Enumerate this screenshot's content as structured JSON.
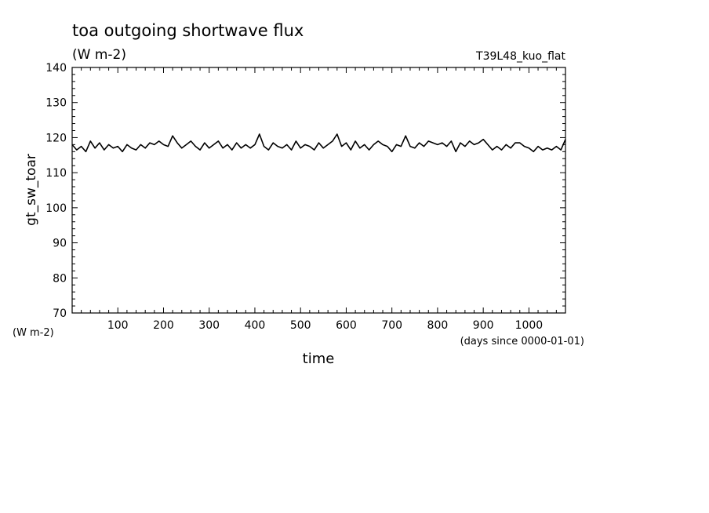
{
  "chart_data": {
    "type": "line",
    "title": "toa outgoing shortwave flux",
    "subtitle": "(W m-2)",
    "run_label": "T39L48_kuo_flat",
    "xlabel": "time",
    "x_units": "(days since 0000-01-01)",
    "ylabel": "gt_sw_toar",
    "y_units": "(W m-2)",
    "xlim": [
      0,
      1080
    ],
    "ylim": [
      70,
      140
    ],
    "x_ticks": [
      100,
      200,
      300,
      400,
      500,
      600,
      700,
      800,
      900,
      1000
    ],
    "y_ticks": [
      70,
      80,
      90,
      100,
      110,
      120,
      130,
      140
    ],
    "grid": false,
    "series": [
      {
        "x": [
          0,
          10,
          20,
          30,
          40,
          50,
          60,
          70,
          80,
          90,
          100,
          110,
          120,
          130,
          140,
          150,
          160,
          170,
          180,
          190,
          200,
          210,
          220,
          230,
          240,
          250,
          260,
          270,
          280,
          290,
          300,
          310,
          320,
          330,
          340,
          350,
          360,
          370,
          380,
          390,
          400,
          410,
          420,
          430,
          440,
          450,
          460,
          470,
          480,
          490,
          500,
          510,
          520,
          530,
          540,
          550,
          560,
          570,
          580,
          590,
          600,
          610,
          620,
          630,
          640,
          650,
          660,
          670,
          680,
          690,
          700,
          710,
          720,
          730,
          740,
          750,
          760,
          770,
          780,
          790,
          800,
          810,
          820,
          830,
          840,
          850,
          860,
          870,
          880,
          890,
          900,
          910,
          920,
          930,
          940,
          950,
          960,
          970,
          980,
          990,
          1000,
          1010,
          1020,
          1030,
          1040,
          1050,
          1060,
          1070,
          1080
        ],
        "values": [
          118,
          116.5,
          117.5,
          116,
          119,
          117,
          118.5,
          116.5,
          118,
          117,
          117.5,
          116,
          118,
          117,
          116.5,
          118,
          117,
          118.5,
          118,
          119,
          118,
          117.5,
          120.5,
          118.5,
          117,
          118,
          119,
          117.5,
          116.5,
          118.5,
          117,
          118,
          119,
          117,
          118,
          116.5,
          118.5,
          117,
          118,
          117,
          118,
          121,
          117.5,
          116.5,
          118.5,
          117.5,
          117,
          118,
          116.5,
          119,
          117,
          118,
          117.5,
          116.5,
          118.5,
          117,
          118,
          119,
          121,
          117.5,
          118.5,
          116.5,
          119,
          117,
          118,
          116.5,
          118,
          119,
          118,
          117.5,
          116,
          118,
          117.5,
          120.5,
          117.5,
          117,
          118.5,
          117.5,
          119,
          118.5,
          118,
          118.5,
          117.5,
          119,
          116,
          118.5,
          117.5,
          119,
          118,
          118.5,
          119.5,
          118,
          116.5,
          117.5,
          116.5,
          118,
          117,
          118.5,
          118.5,
          117.5,
          117,
          116,
          117.5,
          116.5,
          117,
          116.5,
          117.5,
          116.5,
          119.5
        ]
      }
    ]
  }
}
